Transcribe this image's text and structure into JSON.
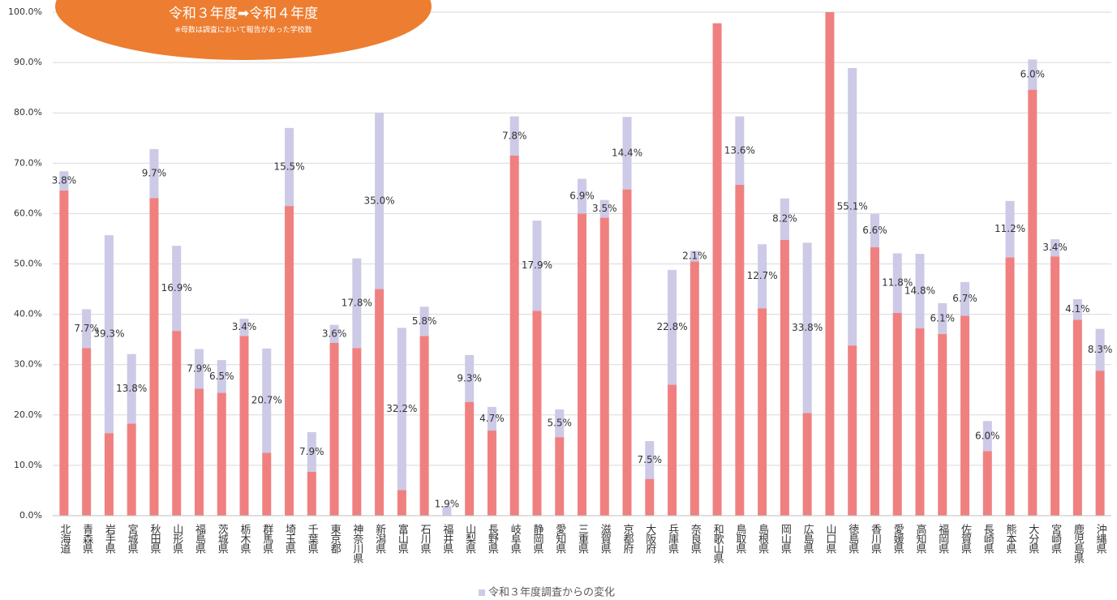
{
  "chart_data": {
    "type": "stacked-bar",
    "annotations": [
      "令和３年度➡令和４年度",
      "※母数は調査において報告があった学校数"
    ],
    "categories": [
      "北海道",
      "青森県",
      "岩手県",
      "宮城県",
      "秋田県",
      "山形県",
      "福島県",
      "茨城県",
      "栃木県",
      "群馬県",
      "埼玉県",
      "千葉県",
      "東京都",
      "神奈川県",
      "新潟県",
      "富山県",
      "石川県",
      "福井県",
      "山梨県",
      "長野県",
      "岐阜県",
      "静岡県",
      "愛知県",
      "三重県",
      "滋賀県",
      "京都府",
      "大阪府",
      "兵庫県",
      "奈良県",
      "和歌山県",
      "鳥取県",
      "島根県",
      "岡山県",
      "広島県",
      "山口県",
      "徳島県",
      "香川県",
      "愛媛県",
      "高知県",
      "福岡県",
      "佐賀県",
      "長崎県",
      "熊本県",
      "大分県",
      "宮崎県",
      "鹿児島県",
      "沖縄県"
    ],
    "series": [
      {
        "color": "#f08080",
        "values": [
          64.6,
          33.3,
          16.4,
          18.3,
          63.1,
          36.7,
          25.2,
          24.4,
          35.7,
          12.5,
          61.5,
          8.7,
          34.3,
          33.3,
          45.0,
          5.1,
          35.7,
          0,
          22.6,
          16.9,
          71.5,
          40.7,
          15.6,
          60.0,
          59.2,
          64.8,
          7.3,
          26.0,
          50.5,
          97.8,
          65.7,
          41.2,
          54.8,
          20.4,
          100,
          33.8,
          53.3,
          40.3,
          37.2,
          36.1,
          39.7,
          12.8,
          51.3,
          84.6,
          51.5,
          38.9,
          28.8
        ]
      },
      {
        "name": "令和３年度調査からの変化",
        "color": "#cccae6",
        "values": [
          3.8,
          7.7,
          39.3,
          13.8,
          9.7,
          16.9,
          7.9,
          6.5,
          3.4,
          20.7,
          15.5,
          7.9,
          3.6,
          17.8,
          35.0,
          32.2,
          5.8,
          1.9,
          9.3,
          4.7,
          7.8,
          17.9,
          5.5,
          6.9,
          3.5,
          14.4,
          7.5,
          22.8,
          2.1,
          null,
          13.6,
          12.7,
          8.2,
          33.8,
          null,
          55.1,
          6.6,
          11.8,
          14.8,
          6.1,
          6.7,
          6.0,
          11.2,
          6.0,
          3.4,
          4.1,
          8.3
        ],
        "value_labels": [
          "3.8%",
          "7.7%",
          "39.3%",
          "13.8%",
          "9.7%",
          "16.9%",
          "7.9%",
          "6.5%",
          "3.4%",
          "20.7%",
          "15.5%",
          "7.9%",
          "3.6%",
          "17.8%",
          "35.0%",
          "32.2%",
          "5.8%",
          "1.9%",
          "9.3%",
          "4.7%",
          "7.8%",
          "17.9%",
          "5.5%",
          "6.9%",
          "3.5%",
          "14.4%",
          "7.5%",
          "22.8%",
          "2.1%",
          null,
          "13.6%",
          "12.7%",
          "8.2%",
          "33.8%",
          null,
          "55.1%",
          "6.6%",
          "11.8%",
          "14.8%",
          "6.1%",
          "6.7%",
          "6.0%",
          "11.2%",
          "6.0%",
          "3.4%",
          "4.1%",
          "8.3%"
        ]
      }
    ],
    "ylim": [
      0,
      100
    ],
    "yticks": [
      {
        "value": 0,
        "label": "0.0%"
      },
      {
        "value": 10,
        "label": "10.0%"
      },
      {
        "value": 20,
        "label": "20.0%"
      },
      {
        "value": 30,
        "label": "30.0%"
      },
      {
        "value": 40,
        "label": "40.0%"
      },
      {
        "value": 50,
        "label": "50.0%"
      },
      {
        "value": 60,
        "label": "60.0%"
      },
      {
        "value": 70,
        "label": "70.0%"
      },
      {
        "value": 80,
        "label": "80.0%"
      },
      {
        "value": 90,
        "label": "90.0%"
      },
      {
        "value": 100,
        "label": "100.0%"
      }
    ],
    "grid": true,
    "legend": "bottom"
  }
}
